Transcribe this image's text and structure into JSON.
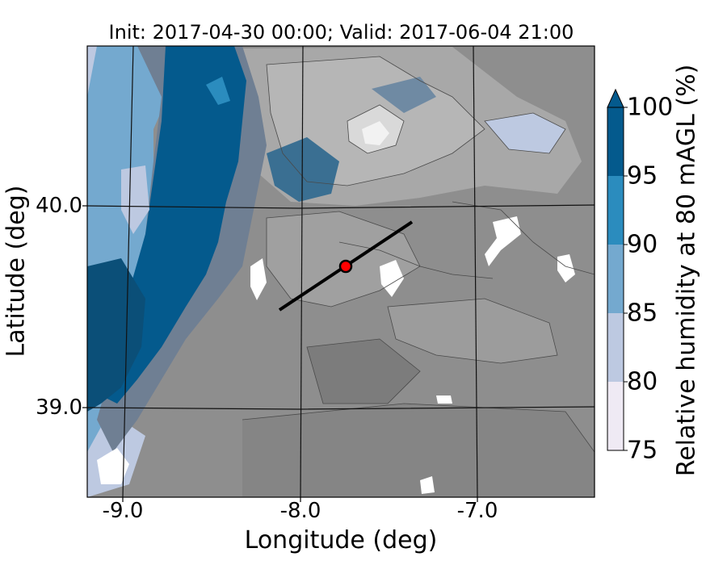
{
  "title": "Init: 2017-04-30 00:00; Valid: 2017-06-04 21:00",
  "xlabel": "Longitude (deg)",
  "ylabel": "Latitude (deg)",
  "xticks": [
    "-9.0",
    "-8.0",
    "-7.0"
  ],
  "yticks": [
    "40.0",
    "39.0"
  ],
  "colorbar": {
    "label": "Relative humidity at 80 mAGL (%)",
    "ticks": [
      "75",
      "80",
      "85",
      "90",
      "95",
      "100"
    ],
    "levels": [
      {
        "from": 75,
        "to": 80,
        "color": "#efeaf4"
      },
      {
        "from": 80,
        "to": 85,
        "color": "#bdc9e1"
      },
      {
        "from": 85,
        "to": 90,
        "color": "#74a9cf"
      },
      {
        "from": 90,
        "to": 95,
        "color": "#2b8cbe"
      },
      {
        "from": 95,
        "to": 100,
        "color": "#045a8d"
      }
    ],
    "extend": "max"
  },
  "map": {
    "terrain_shading": "grayscale",
    "transect": {
      "start": {
        "lon": -8.12,
        "lat": 39.48
      },
      "end": {
        "lon": -7.38,
        "lat": 39.92
      }
    },
    "site_marker": {
      "lon": -7.75,
      "lat": 39.69,
      "color": "#ff0000"
    }
  }
}
